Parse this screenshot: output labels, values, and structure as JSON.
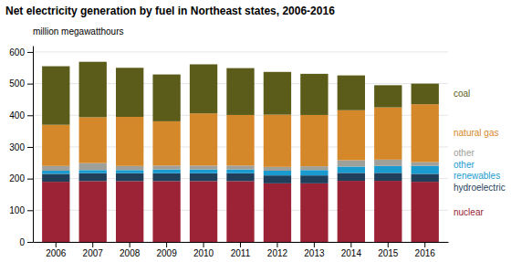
{
  "chart_data": {
    "type": "bar",
    "title": "Net electricity generation by fuel in Northeast states, 2006-2016",
    "ylabel": "million megawatthours",
    "categories": [
      "2006",
      "2007",
      "2008",
      "2009",
      "2010",
      "2011",
      "2012",
      "2013",
      "2014",
      "2015",
      "2016"
    ],
    "series": [
      {
        "name": "nuclear",
        "color": "#9b2335",
        "values": [
          190,
          192,
          192,
          192,
          192,
          192,
          185,
          185,
          193,
          193,
          190
        ]
      },
      {
        "name": "hydroelectric",
        "color": "#1f3f5b",
        "values": [
          25,
          25,
          25,
          25,
          25,
          25,
          25,
          25,
          25,
          25,
          25
        ]
      },
      {
        "name": "other\nrenewables",
        "color": "#1a9bcf",
        "values": [
          10,
          10,
          10,
          12,
          12,
          12,
          15,
          17,
          20,
          22,
          25
        ]
      },
      {
        "name": "other",
        "color": "#a0a09a",
        "values": [
          15,
          22,
          13,
          12,
          12,
          12,
          12,
          12,
          20,
          20,
          12
        ]
      },
      {
        "name": "natural gas",
        "color": "#d4882a",
        "values": [
          130,
          145,
          155,
          140,
          165,
          160,
          165,
          162,
          158,
          165,
          183
        ]
      },
      {
        "name": "coal",
        "color": "#5c5c1a",
        "values": [
          185,
          175,
          155,
          148,
          155,
          148,
          135,
          130,
          110,
          70,
          65
        ]
      }
    ],
    "ylim": [
      0,
      620
    ],
    "yticks": [
      0,
      100,
      200,
      300,
      400,
      500,
      600
    ],
    "stacked": true,
    "grid": true,
    "legend": "right"
  }
}
